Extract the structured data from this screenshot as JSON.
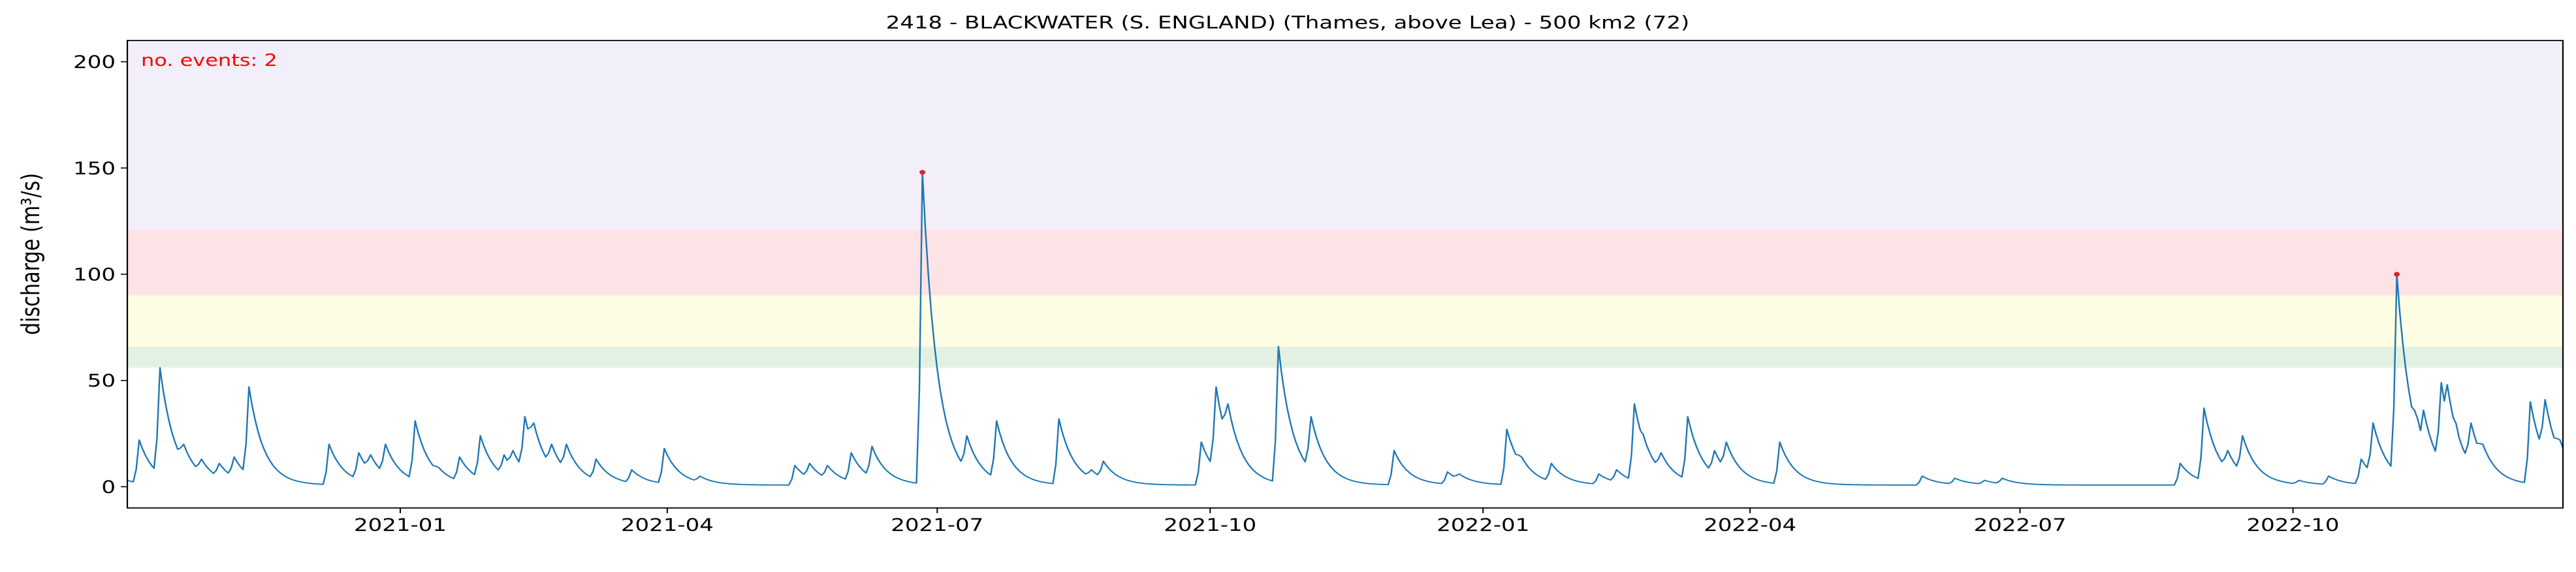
{
  "chart_data": {
    "type": "line",
    "title": "2418 - BLACKWATER (S. ENGLAND) (Thames, above Lea) - 500 km2 (72)",
    "xlabel": "",
    "ylabel": "discharge (m³/s)",
    "xlim": [
      "2020-10-01",
      "2022-12-31"
    ],
    "ylim": [
      -10,
      210
    ],
    "yticks": [
      0,
      50,
      100,
      150,
      200
    ],
    "xticks": [
      {
        "date": "2021-01-01",
        "label": "2021-01"
      },
      {
        "date": "2021-04-01",
        "label": "2021-04"
      },
      {
        "date": "2021-07-01",
        "label": "2021-07"
      },
      {
        "date": "2021-10-01",
        "label": "2021-10"
      },
      {
        "date": "2022-01-01",
        "label": "2022-01"
      },
      {
        "date": "2022-04-01",
        "label": "2022-04"
      },
      {
        "date": "2022-07-01",
        "label": "2022-07"
      },
      {
        "date": "2022-10-01",
        "label": "2022-10"
      }
    ],
    "bands": [
      {
        "from": 56,
        "to": 66,
        "color": "#e3f1e3"
      },
      {
        "from": 66,
        "to": 90,
        "color": "#fdfde4"
      },
      {
        "from": 90,
        "to": 121,
        "color": "#fde3e6"
      },
      {
        "from": 121,
        "to": 210,
        "color": "#f2eefa"
      }
    ],
    "annotation": {
      "text": "no. events: 2",
      "color": "#ff0000"
    },
    "line_color": "#1f77b4",
    "event_color": "#d62728",
    "baseline": 0.8,
    "peaks": [
      [
        "2020-10-05",
        22
      ],
      [
        "2020-10-12",
        56
      ],
      [
        "2020-10-20",
        20
      ],
      [
        "2020-10-26",
        13
      ],
      [
        "2020-11-01",
        11
      ],
      [
        "2020-11-06",
        14
      ],
      [
        "2020-11-11",
        47
      ],
      [
        "2020-12-08",
        20
      ],
      [
        "2020-12-18",
        16
      ],
      [
        "2020-12-22",
        15
      ],
      [
        "2020-12-27",
        20
      ],
      [
        "2021-01-06",
        31
      ],
      [
        "2021-01-14",
        9
      ],
      [
        "2021-01-21",
        14
      ],
      [
        "2021-01-28",
        24
      ],
      [
        "2021-02-05",
        15
      ],
      [
        "2021-02-08",
        17
      ],
      [
        "2021-02-12",
        33
      ],
      [
        "2021-02-15",
        30
      ],
      [
        "2021-02-21",
        20
      ],
      [
        "2021-02-26",
        20
      ],
      [
        "2021-03-08",
        13
      ],
      [
        "2021-03-20",
        8
      ],
      [
        "2021-03-31",
        18
      ],
      [
        "2021-04-12",
        5
      ],
      [
        "2021-05-14",
        10
      ],
      [
        "2021-05-19",
        11
      ],
      [
        "2021-05-25",
        10
      ],
      [
        "2021-06-02",
        16
      ],
      [
        "2021-06-09",
        19
      ],
      [
        "2021-06-26",
        148
      ],
      [
        "2021-07-11",
        24
      ],
      [
        "2021-07-21",
        31
      ],
      [
        "2021-08-11",
        32
      ],
      [
        "2021-08-22",
        8
      ],
      [
        "2021-08-26",
        12
      ],
      [
        "2021-09-28",
        21
      ],
      [
        "2021-10-03",
        47
      ],
      [
        "2021-10-07",
        39
      ],
      [
        "2021-10-24",
        66
      ],
      [
        "2021-11-04",
        33
      ],
      [
        "2021-12-02",
        17
      ],
      [
        "2021-12-20",
        7
      ],
      [
        "2021-12-24",
        6
      ],
      [
        "2022-01-09",
        27
      ],
      [
        "2022-01-14",
        14
      ],
      [
        "2022-01-24",
        11
      ],
      [
        "2022-02-09",
        6
      ],
      [
        "2022-02-15",
        8
      ],
      [
        "2022-02-21",
        39
      ],
      [
        "2022-02-25",
        20
      ],
      [
        "2022-03-02",
        16
      ],
      [
        "2022-03-11",
        33
      ],
      [
        "2022-03-20",
        17
      ],
      [
        "2022-03-24",
        21
      ],
      [
        "2022-04-11",
        21
      ],
      [
        "2022-05-29",
        5
      ],
      [
        "2022-06-09",
        4
      ],
      [
        "2022-06-19",
        3
      ],
      [
        "2022-06-25",
        4
      ],
      [
        "2022-08-24",
        11
      ],
      [
        "2022-09-01",
        37
      ],
      [
        "2022-09-09",
        17
      ],
      [
        "2022-09-14",
        24
      ],
      [
        "2022-10-03",
        3
      ],
      [
        "2022-10-13",
        5
      ],
      [
        "2022-10-24",
        13
      ],
      [
        "2022-10-28",
        30
      ],
      [
        "2022-11-05",
        100
      ],
      [
        "2022-11-12",
        32
      ],
      [
        "2022-11-14",
        36
      ],
      [
        "2022-11-20",
        49
      ],
      [
        "2022-11-22",
        48
      ],
      [
        "2022-11-26",
        23
      ],
      [
        "2022-11-30",
        30
      ],
      [
        "2022-12-04",
        20
      ],
      [
        "2022-12-20",
        40
      ],
      [
        "2022-12-25",
        41
      ],
      [
        "2022-12-30",
        22
      ]
    ],
    "events": [
      {
        "date": "2021-06-26",
        "value": 148
      },
      {
        "date": "2022-11-05",
        "value": 100
      }
    ]
  }
}
